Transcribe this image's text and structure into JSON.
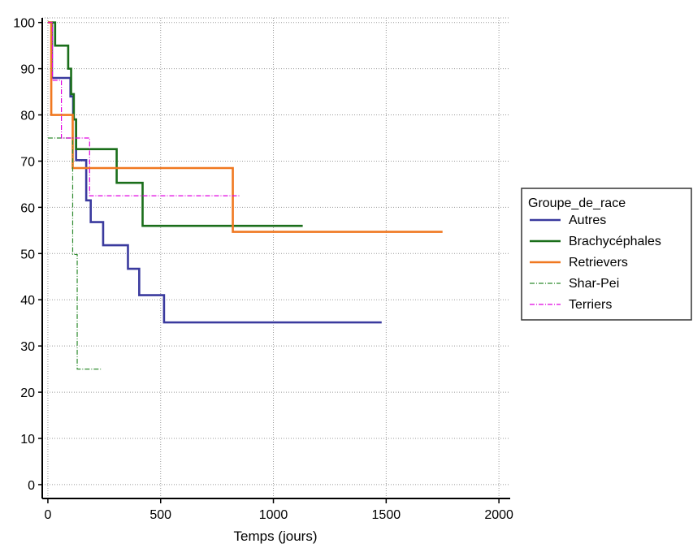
{
  "chart_data": {
    "type": "line",
    "subtype": "kaplan-meier step",
    "title": "",
    "xlabel": "Temps (jours)",
    "ylabel": "",
    "xlim": [
      -25,
      2050
    ],
    "ylim": [
      -3,
      101
    ],
    "xticks": [
      0,
      500,
      1000,
      1500,
      2000
    ],
    "yticks": [
      0,
      10,
      20,
      30,
      40,
      50,
      60,
      70,
      80,
      90,
      100
    ],
    "grid": true,
    "legend": {
      "title": "Groupe_de_race",
      "position": "right"
    },
    "series": [
      {
        "name": "Autres",
        "color": "#3a3a9e",
        "style": "solid",
        "x": [
          0,
          18,
          90,
          100,
          112,
          125,
          170,
          190,
          245,
          355,
          405,
          515,
          1480
        ],
        "y": [
          100,
          88,
          88,
          84,
          79,
          70.2,
          61.5,
          56.8,
          51.8,
          46.7,
          41.0,
          35.1,
          35.1
        ]
      },
      {
        "name": "Brachycéphales",
        "color": "#1a6e1a",
        "style": "solid",
        "x": [
          0,
          20,
          32,
          90,
          103,
          115,
          125,
          305,
          420,
          1130
        ],
        "y": [
          100,
          100,
          95,
          90,
          84.5,
          79,
          72.6,
          65.3,
          56.0,
          56.0
        ],
        "vertical_steps": [
          [
            20,
            100,
            95
          ],
          [
            32,
            95,
            95
          ],
          [
            90,
            95,
            90
          ],
          [
            103,
            90,
            84.5
          ],
          [
            115,
            84.5,
            79
          ],
          [
            125,
            79,
            72.6
          ],
          [
            305,
            72.6,
            65.3
          ],
          [
            420,
            65.3,
            56.0
          ]
        ]
      },
      {
        "name": "Retrievers",
        "color": "#f07820",
        "style": "solid",
        "x": [
          0,
          15,
          110,
          820,
          1750
        ],
        "y": [
          100,
          80,
          68.5,
          54.7,
          54.7
        ]
      },
      {
        "name": "Shar-Pei",
        "color": "#2e8b2e",
        "style": "dashdot",
        "x": [
          0,
          110,
          130,
          235
        ],
        "y": [
          75,
          49.8,
          25,
          25
        ]
      },
      {
        "name": "Terriers",
        "color": "#e000e0",
        "style": "dashdot",
        "x": [
          0,
          20,
          60,
          185,
          850
        ],
        "y": [
          100,
          87.5,
          75,
          62.5,
          62.5
        ]
      }
    ]
  }
}
